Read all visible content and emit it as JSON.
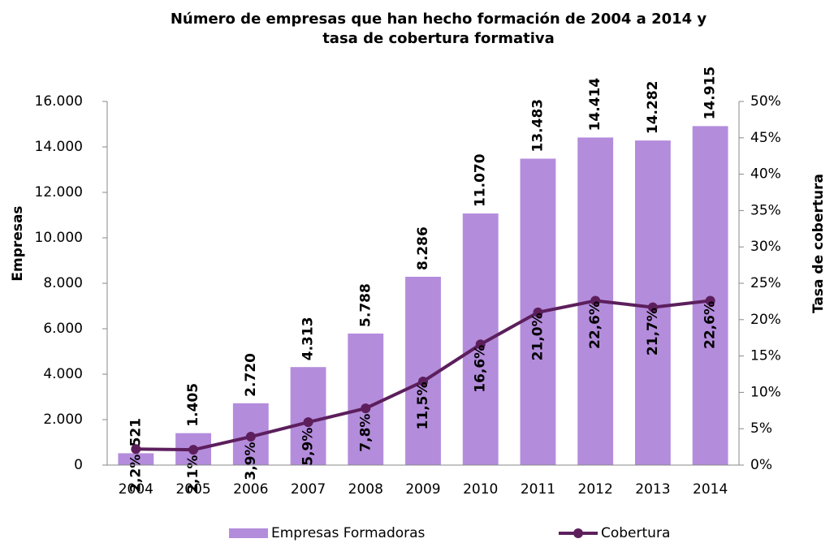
{
  "chart_data": {
    "type": "bar",
    "title": [
      "Número de empresas que han hecho formación de 2004 a 2014 y",
      "tasa de cobertura formativa"
    ],
    "y_label": "Empresas",
    "y2_label": "Tasa de cobertura",
    "categories": [
      "2004",
      "2005",
      "2006",
      "2007",
      "2008",
      "2009",
      "2010",
      "2011",
      "2012",
      "2013",
      "2014"
    ],
    "series": [
      {
        "name": "Empresas Formadoras",
        "type": "bar",
        "color": "#b48cdc",
        "values": [
          521,
          1405,
          2720,
          4313,
          5788,
          8286,
          11070,
          13483,
          14414,
          14282,
          14915
        ],
        "value_labels": [
          "521",
          "1.405",
          "2.720",
          "4.313",
          "5.788",
          "8.286",
          "11.070",
          "13.483",
          "14.414",
          "14.282",
          "14.915"
        ]
      },
      {
        "name": "Cobertura",
        "type": "line",
        "axis": "y2",
        "color": "#5c1f5c",
        "values": [
          2.2,
          2.1,
          3.9,
          5.9,
          7.8,
          11.5,
          16.6,
          21.0,
          22.6,
          21.7,
          22.6
        ],
        "value_labels": [
          "2,2%",
          "2,1%",
          "3,9%",
          "5,9%",
          "7,8%",
          "11,5%",
          "16,6%",
          "21,0%",
          "22,6%",
          "21,7%",
          "22,6%"
        ]
      }
    ],
    "ylim": [
      0,
      16000
    ],
    "yticks": [
      0,
      {
        "value": 2000,
        "label": "2.000"
      },
      {
        "value": 4000,
        "label": "4.000"
      },
      {
        "value": 6000,
        "label": "6.000"
      },
      {
        "value": 8000,
        "label": "8.000"
      },
      {
        "value": 10000,
        "label": "10.000"
      },
      {
        "value": 12000,
        "label": "12.000"
      },
      {
        "value": 14000,
        "label": "14.000"
      },
      {
        "value": 16000,
        "label": "16.000"
      }
    ],
    "y2lim": [
      0,
      50
    ],
    "y2ticks": [
      {
        "value": 0,
        "label": "0%"
      },
      {
        "value": 5,
        "label": "5%"
      },
      {
        "value": 10,
        "label": "10%"
      },
      {
        "value": 15,
        "label": "15%"
      },
      {
        "value": 20,
        "label": "20%"
      },
      {
        "value": 25,
        "label": "25%"
      },
      {
        "value": 30,
        "label": "30%"
      },
      {
        "value": 35,
        "label": "35%"
      },
      {
        "value": 40,
        "label": "40%"
      },
      {
        "value": 45,
        "label": "45%"
      },
      {
        "value": 50,
        "label": "50%"
      }
    ],
    "grid": false,
    "legend": "bottom"
  }
}
